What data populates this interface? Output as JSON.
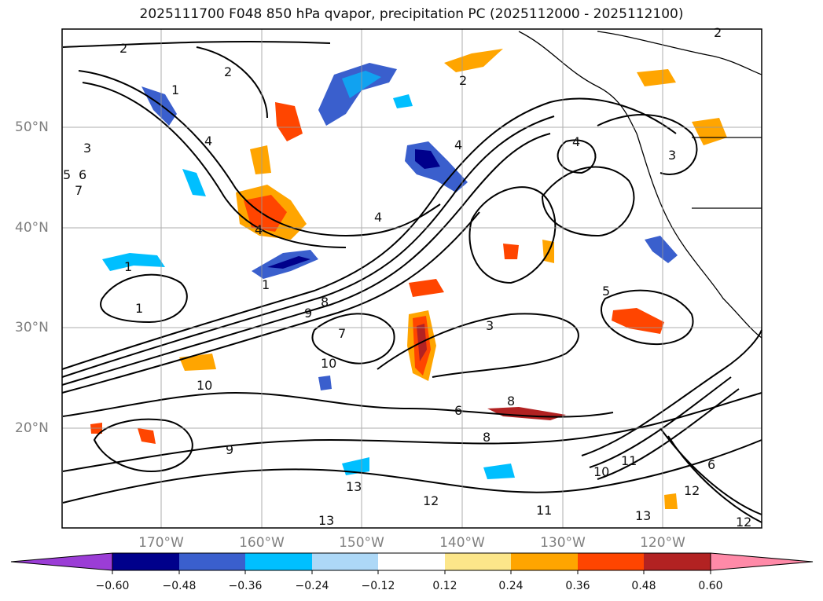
{
  "title": "2025111700 F048 850 hPa qvapor, precipitation PC (2025112000 - 2025112100)",
  "axes": {
    "lat_labels": [
      "50°N",
      "40°N",
      "30°N",
      "20°N"
    ],
    "lon_labels": [
      "170°W",
      "160°W",
      "150°W",
      "140°W",
      "130°W",
      "120°W"
    ]
  },
  "colorbar": {
    "ticks": [
      "−0.60",
      "−0.48",
      "−0.36",
      "−0.24",
      "−0.12",
      "0.12",
      "0.24",
      "0.36",
      "0.48",
      "0.60"
    ],
    "colors": [
      "#9b3dd6",
      "#00008b",
      "#3a5fcd",
      "#00bfff",
      "#add8f7",
      "#ffffff",
      "#fce68a",
      "#ffa500",
      "#ff4500",
      "#b22222",
      "#ff8aa8"
    ]
  },
  "contour_labels": [
    "2",
    "2",
    "2",
    "2",
    "3",
    "3",
    "3",
    "4",
    "4",
    "4",
    "4",
    "4",
    "5",
    "5",
    "6",
    "6",
    "6",
    "7",
    "7",
    "8",
    "8",
    "8",
    "9",
    "9",
    "10",
    "10",
    "10",
    "11",
    "11",
    "12",
    "12",
    "12",
    "13",
    "13",
    "13",
    "1",
    "1",
    "1",
    "1"
  ]
}
